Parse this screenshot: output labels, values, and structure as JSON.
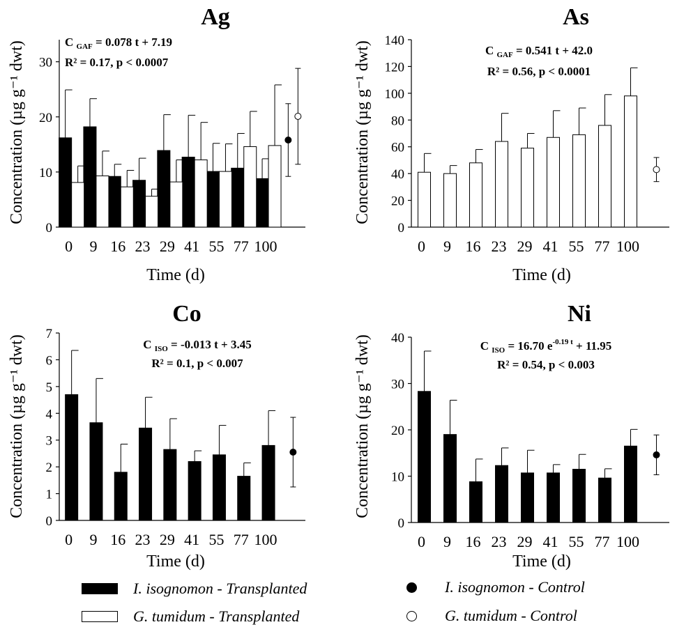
{
  "chart_data": [
    {
      "type": "bar",
      "panel": "Ag",
      "title": "Ag",
      "equation": "C GAF = 0.078 t + 7.19",
      "equation_parts": {
        "lhs": "C",
        "sub": "GAF",
        "rhs": "= 0.078 t + 7.19",
        "sup": ""
      },
      "stats": "R² = 0.17, p < 0.0007",
      "ylabel": "Concentration (µg g⁻¹ dwt)",
      "xlabel": "Time (d)",
      "categories": [
        "0",
        "9",
        "16",
        "23",
        "29",
        "41",
        "55",
        "77",
        "100"
      ],
      "ylim": [
        0,
        34
      ],
      "yticks": [
        0,
        10,
        20,
        30
      ],
      "series": [
        {
          "name": "I. isognomon - Transplanted",
          "style": "filled",
          "values": [
            16.2,
            18.2,
            9.2,
            8.5,
            13.9,
            12.7,
            10.1,
            10.7,
            8.8
          ],
          "errors": [
            8.7,
            5.1,
            2.2,
            4.0,
            6.5,
            7.6,
            5.1,
            6.3,
            3.6
          ]
        },
        {
          "name": "G. tumidum - Transplanted",
          "style": "open",
          "values": [
            8.1,
            9.3,
            7.3,
            5.6,
            8.2,
            12.2,
            10.1,
            14.6,
            14.8
          ],
          "errors": [
            3.0,
            4.5,
            3.0,
            1.3,
            4.0,
            6.8,
            5.0,
            6.4,
            11.0
          ]
        }
      ],
      "controls": [
        {
          "name": "I. isognomon - Control",
          "style": "filled",
          "value": 15.8,
          "error": 6.6
        },
        {
          "name": "G. tumidum - Control",
          "style": "open",
          "value": 20.1,
          "error": 8.7
        }
      ]
    },
    {
      "type": "bar",
      "panel": "As",
      "title": "As",
      "equation": "C GAF = 0.541 t + 42.0",
      "equation_parts": {
        "lhs": "C",
        "sub": "GAF",
        "rhs": "= 0.541 t + 42.0",
        "sup": ""
      },
      "stats": "R² = 0.56, p < 0.0001",
      "ylabel": "Concentration (µg g⁻¹ dwt)",
      "xlabel": "Time (d)",
      "categories": [
        "0",
        "9",
        "16",
        "23",
        "29",
        "41",
        "55",
        "77",
        "100"
      ],
      "ylim": [
        0,
        140
      ],
      "yticks": [
        0,
        20,
        40,
        60,
        80,
        100,
        120,
        140
      ],
      "series": [
        {
          "name": "G. tumidum - Transplanted",
          "style": "open",
          "values": [
            41,
            40,
            48,
            64,
            59,
            67,
            69,
            76,
            98
          ],
          "errors": [
            14,
            6,
            10,
            21,
            11,
            20,
            20,
            23,
            21
          ]
        }
      ],
      "controls": [
        {
          "name": "G. tumidum - Control",
          "style": "open",
          "value": 43,
          "error": 9
        }
      ]
    },
    {
      "type": "bar",
      "panel": "Co",
      "title": "Co",
      "equation": "C ISO = -0.013 t + 3.45",
      "equation_parts": {
        "lhs": "C",
        "sub": "ISO",
        "rhs": "= -0.013 t + 3.45",
        "sup": ""
      },
      "stats": "R² = 0.1, p < 0.007",
      "ylabel": "Concentration (µg g⁻¹ dwt)",
      "xlabel": "Time (d)",
      "categories": [
        "0",
        "9",
        "16",
        "23",
        "29",
        "41",
        "55",
        "77",
        "100"
      ],
      "ylim": [
        0,
        7
      ],
      "yticks": [
        0,
        1,
        2,
        3,
        4,
        5,
        6,
        7
      ],
      "series": [
        {
          "name": "I. isognomon - Transplanted",
          "style": "filled",
          "values": [
            4.7,
            3.65,
            1.8,
            3.45,
            2.65,
            2.2,
            2.45,
            1.65,
            2.8
          ],
          "errors": [
            1.65,
            1.65,
            1.05,
            1.15,
            1.15,
            0.4,
            1.1,
            0.5,
            1.3
          ]
        }
      ],
      "controls": [
        {
          "name": "I. isognomon - Control",
          "style": "filled",
          "value": 2.55,
          "error": 1.3
        }
      ]
    },
    {
      "type": "bar",
      "panel": "Ni",
      "title": "Ni",
      "equation": "C ISO = 16.70 e-0.19 t + 11.95",
      "equation_parts": {
        "lhs": "C",
        "sub": "ISO",
        "rhs": "= 16.70 e",
        "sup": "-0.19 t",
        "tail": " + 11.95"
      },
      "stats": "R² = 0.54, p < 0.003",
      "ylabel": "Concentration (µg g⁻¹ dwt)",
      "xlabel": "Time (d)",
      "categories": [
        "0",
        "9",
        "16",
        "23",
        "29",
        "41",
        "55",
        "77",
        "100"
      ],
      "ylim": [
        0,
        40
      ],
      "yticks": [
        0,
        10,
        20,
        30,
        40
      ],
      "series": [
        {
          "name": "I. isognomon - Transplanted",
          "style": "filled",
          "values": [
            28.3,
            19.0,
            8.8,
            12.3,
            10.7,
            10.7,
            11.5,
            9.6,
            16.5
          ],
          "errors": [
            8.7,
            7.4,
            4.9,
            3.8,
            4.9,
            1.8,
            3.2,
            2.0,
            3.6
          ]
        }
      ],
      "controls": [
        {
          "name": "I. isognomon - Control",
          "style": "filled",
          "value": 14.6,
          "error": 4.3
        }
      ]
    }
  ],
  "legend": [
    {
      "label": "I. isognomon - Transplanted",
      "marker": "filled-bar"
    },
    {
      "label": "G. tumidum - Transplanted",
      "marker": "open-bar"
    },
    {
      "label": "I. isognomon - Control",
      "marker": "filled-dot"
    },
    {
      "label": "G. tumidum - Control",
      "marker": "open-dot"
    }
  ],
  "colors": {
    "filled": "#000000",
    "open": "#ffffff",
    "stroke": "#000000"
  }
}
